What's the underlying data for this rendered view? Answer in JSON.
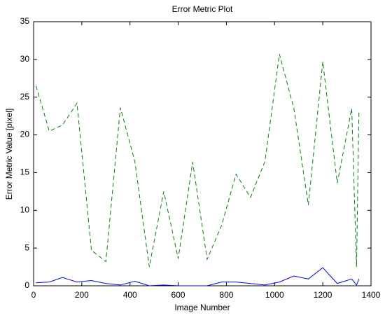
{
  "chart_data": {
    "type": "line",
    "title": "Error Metric Plot",
    "x_label": "Image Number",
    "y_label": "Error Metric Value [pixel]",
    "x": [
      10,
      65,
      120,
      180,
      240,
      300,
      360,
      420,
      480,
      540,
      600,
      660,
      720,
      780,
      840,
      900,
      960,
      1020,
      1080,
      1140,
      1200,
      1260,
      1320,
      1340,
      1350
    ],
    "series": [
      {
        "color": "#008000",
        "linestyle": "dashed",
        "values": [
          26.5,
          20.5,
          21.3,
          24.2,
          4.7,
          3.2,
          23.6,
          16.5,
          2.5,
          12.5,
          3.6,
          16.4,
          3.5,
          8.0,
          14.8,
          11.7,
          16.5,
          30.7,
          23.5,
          10.7,
          29.7,
          13.6,
          23.5,
          2.5,
          23.3
        ]
      },
      {
        "color": "#0000ff",
        "linestyle": "solid",
        "values": [
          0.4,
          0.5,
          1.1,
          0.5,
          0.7,
          0.3,
          0.1,
          0.6,
          0.0,
          0.1,
          0.0,
          0.0,
          0.0,
          0.5,
          0.5,
          0.3,
          0.1,
          0.5,
          1.3,
          0.9,
          2.4,
          0.3,
          0.9,
          0.1,
          0.9
        ]
      }
    ],
    "xlim": [
      0,
      1400
    ],
    "xticks": [
      0,
      200,
      400,
      600,
      800,
      1000,
      1200,
      1400
    ],
    "ylim": [
      0,
      35
    ],
    "yticks": [
      0,
      5,
      10,
      15,
      20,
      25,
      30,
      35
    ]
  }
}
